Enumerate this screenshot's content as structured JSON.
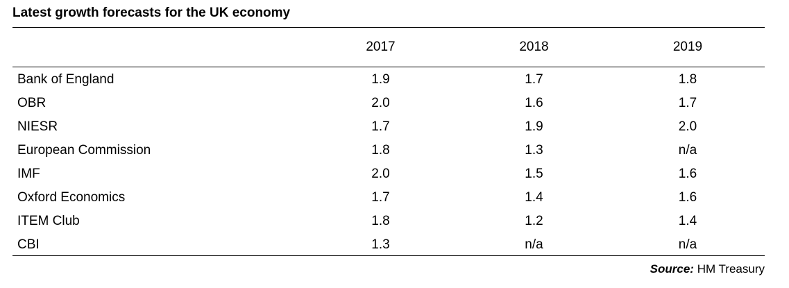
{
  "chart_data": {
    "type": "table",
    "title": "Latest growth forecasts for the UK economy",
    "columns": [
      "2017",
      "2018",
      "2019"
    ],
    "rows": [
      {
        "label": "Bank of England",
        "values": [
          "1.9",
          "1.7",
          "1.8"
        ]
      },
      {
        "label": "OBR",
        "values": [
          "2.0",
          "1.6",
          "1.7"
        ]
      },
      {
        "label": "NIESR",
        "values": [
          "1.7",
          "1.9",
          "2.0"
        ]
      },
      {
        "label": "European Commission",
        "values": [
          "1.8",
          "1.3",
          "n/a"
        ]
      },
      {
        "label": "IMF",
        "values": [
          "2.0",
          "1.5",
          "1.6"
        ]
      },
      {
        "label": "Oxford Economics",
        "values": [
          "1.7",
          "1.4",
          "1.6"
        ]
      },
      {
        "label": "ITEM Club",
        "values": [
          "1.8",
          "1.2",
          "1.4"
        ]
      },
      {
        "label": "CBI",
        "values": [
          "1.3",
          "n/a",
          "n/a"
        ]
      }
    ],
    "source_label": "Source:",
    "source_value": "HM Treasury"
  }
}
